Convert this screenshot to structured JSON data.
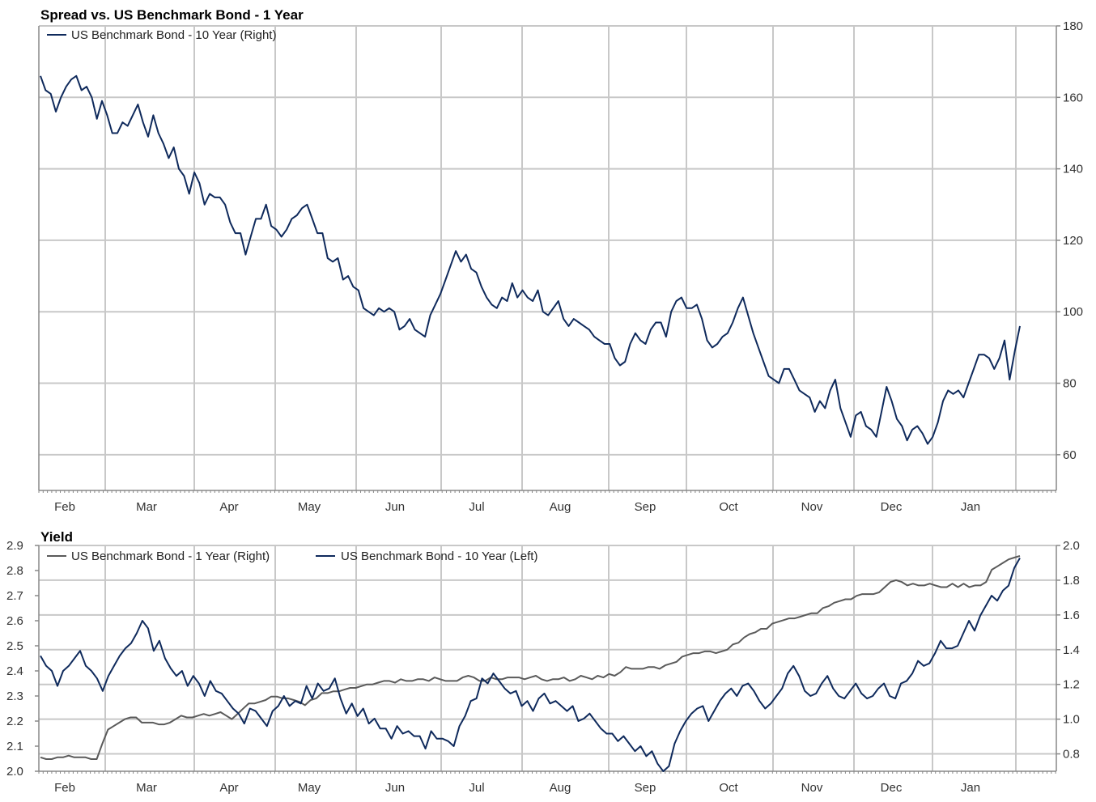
{
  "chart_data": [
    {
      "type": "line",
      "title": "Spread vs. US Benchmark Bond - 1 Year",
      "x_labels": [
        "Feb",
        "Mar",
        "Apr",
        "May",
        "Jun",
        "Jul",
        "Aug",
        "Sep",
        "Oct",
        "Nov",
        "Dec",
        "Jan"
      ],
      "y_right": {
        "min": 50,
        "max": 180,
        "ticks": [
          60,
          80,
          100,
          120,
          140,
          160,
          180
        ]
      },
      "grid": true,
      "series": [
        {
          "name": "US Benchmark Bond - 10 Year (Right)",
          "axis": "right",
          "color": "#0f2a5c",
          "values": [
            166,
            162,
            161,
            156,
            160,
            163,
            165,
            166,
            162,
            163,
            160,
            154,
            159,
            155,
            150,
            150,
            153,
            152,
            155,
            158,
            153,
            149,
            155,
            150,
            147,
            143,
            146,
            140,
            138,
            133,
            139,
            136,
            130,
            133,
            132,
            132,
            130,
            125,
            122,
            122,
            116,
            121,
            126,
            126,
            130,
            124,
            123,
            121,
            123,
            126,
            127,
            129,
            130,
            126,
            122,
            122,
            115,
            114,
            115,
            109,
            110,
            107,
            106,
            101,
            100,
            99,
            101,
            100,
            101,
            100,
            95,
            96,
            98,
            95,
            94,
            93,
            99,
            102,
            105,
            109,
            113,
            117,
            114,
            116,
            112,
            111,
            107,
            104,
            102,
            101,
            104,
            103,
            108,
            104,
            106,
            104,
            103,
            106,
            100,
            99,
            101,
            103,
            98,
            96,
            98,
            97,
            96,
            95,
            93,
            92,
            91,
            91,
            87,
            85,
            86,
            91,
            94,
            92,
            91,
            95,
            97,
            97,
            93,
            100,
            103,
            104,
            101,
            101,
            102,
            98,
            92,
            90,
            91,
            93,
            94,
            97,
            101,
            104,
            99,
            94,
            90,
            86,
            82,
            81,
            80,
            84,
            84,
            81,
            78,
            77,
            76,
            72,
            75,
            73,
            78,
            81,
            73,
            69,
            65,
            71,
            72,
            68,
            67,
            65,
            72,
            79,
            75,
            70,
            68,
            64,
            67,
            68,
            66,
            63,
            65,
            69,
            75,
            78,
            77,
            78,
            76,
            80,
            84,
            88,
            88,
            87,
            84,
            87,
            92,
            81,
            89,
            96
          ]
        }
      ]
    },
    {
      "type": "line",
      "title": "Yield",
      "x_labels": [
        "Feb",
        "Mar",
        "Apr",
        "May",
        "Jun",
        "Jul",
        "Aug",
        "Sep",
        "Oct",
        "Nov",
        "Dec",
        "Jan"
      ],
      "y_left": {
        "min": 2.0,
        "max": 2.9,
        "ticks": [
          2.0,
          2.1,
          2.2,
          2.3,
          2.4,
          2.5,
          2.6,
          2.7,
          2.8,
          2.9
        ]
      },
      "y_right": {
        "min": 0.7,
        "max": 2.0,
        "ticks": [
          0.8,
          1.0,
          1.2,
          1.4,
          1.6,
          1.8,
          2.0
        ]
      },
      "grid": true,
      "series": [
        {
          "name": "US Benchmark Bond - 1 Year (Right)",
          "axis": "right",
          "color": "#5a5a5a",
          "values": [
            0.78,
            0.77,
            0.77,
            0.78,
            0.78,
            0.79,
            0.78,
            0.78,
            0.78,
            0.77,
            0.77,
            0.86,
            0.94,
            0.96,
            0.98,
            1.0,
            1.01,
            1.01,
            0.98,
            0.98,
            0.98,
            0.97,
            0.97,
            0.98,
            1.0,
            1.02,
            1.01,
            1.01,
            1.02,
            1.03,
            1.02,
            1.03,
            1.04,
            1.02,
            1.0,
            1.03,
            1.06,
            1.09,
            1.09,
            1.1,
            1.11,
            1.13,
            1.13,
            1.12,
            1.12,
            1.11,
            1.1,
            1.08,
            1.11,
            1.12,
            1.15,
            1.15,
            1.16,
            1.16,
            1.17,
            1.18,
            1.18,
            1.19,
            1.2,
            1.2,
            1.21,
            1.22,
            1.22,
            1.21,
            1.23,
            1.22,
            1.22,
            1.23,
            1.23,
            1.22,
            1.24,
            1.23,
            1.22,
            1.22,
            1.22,
            1.24,
            1.25,
            1.24,
            1.22,
            1.22,
            1.24,
            1.23,
            1.23,
            1.24,
            1.24,
            1.24,
            1.23,
            1.24,
            1.25,
            1.23,
            1.22,
            1.23,
            1.23,
            1.24,
            1.22,
            1.23,
            1.25,
            1.24,
            1.23,
            1.25,
            1.24,
            1.26,
            1.25,
            1.27,
            1.3,
            1.29,
            1.29,
            1.29,
            1.3,
            1.3,
            1.29,
            1.31,
            1.32,
            1.33,
            1.36,
            1.37,
            1.38,
            1.38,
            1.39,
            1.39,
            1.38,
            1.39,
            1.4,
            1.43,
            1.44,
            1.47,
            1.49,
            1.5,
            1.52,
            1.52,
            1.55,
            1.56,
            1.57,
            1.58,
            1.58,
            1.59,
            1.6,
            1.61,
            1.61,
            1.64,
            1.65,
            1.67,
            1.68,
            1.69,
            1.69,
            1.71,
            1.72,
            1.72,
            1.72,
            1.73,
            1.76,
            1.79,
            1.8,
            1.79,
            1.77,
            1.78,
            1.77,
            1.77,
            1.78,
            1.77,
            1.76,
            1.76,
            1.78,
            1.76,
            1.78,
            1.76,
            1.77,
            1.77,
            1.79,
            1.86,
            1.88,
            1.9,
            1.92,
            1.93,
            1.94
          ]
        },
        {
          "name": "US Benchmark Bond - 10 Year (Left)",
          "axis": "left",
          "color": "#0f2a5c",
          "values": [
            2.46,
            2.42,
            2.4,
            2.34,
            2.4,
            2.42,
            2.45,
            2.48,
            2.42,
            2.4,
            2.37,
            2.32,
            2.38,
            2.42,
            2.46,
            2.49,
            2.51,
            2.55,
            2.6,
            2.57,
            2.48,
            2.52,
            2.45,
            2.41,
            2.38,
            2.4,
            2.34,
            2.38,
            2.35,
            2.3,
            2.36,
            2.32,
            2.31,
            2.28,
            2.25,
            2.23,
            2.19,
            2.25,
            2.24,
            2.21,
            2.18,
            2.24,
            2.26,
            2.3,
            2.26,
            2.28,
            2.27,
            2.34,
            2.29,
            2.35,
            2.32,
            2.33,
            2.37,
            2.29,
            2.23,
            2.27,
            2.22,
            2.25,
            2.19,
            2.21,
            2.17,
            2.17,
            2.13,
            2.18,
            2.15,
            2.16,
            2.14,
            2.14,
            2.09,
            2.16,
            2.13,
            2.13,
            2.12,
            2.1,
            2.18,
            2.22,
            2.28,
            2.29,
            2.37,
            2.35,
            2.39,
            2.36,
            2.33,
            2.31,
            2.32,
            2.26,
            2.28,
            2.24,
            2.29,
            2.31,
            2.27,
            2.28,
            2.26,
            2.24,
            2.26,
            2.2,
            2.21,
            2.23,
            2.2,
            2.17,
            2.15,
            2.15,
            2.12,
            2.14,
            2.11,
            2.08,
            2.1,
            2.06,
            2.08,
            2.03,
            2.0,
            2.02,
            2.11,
            2.16,
            2.2,
            2.23,
            2.25,
            2.26,
            2.2,
            2.24,
            2.28,
            2.31,
            2.33,
            2.3,
            2.34,
            2.35,
            2.32,
            2.28,
            2.25,
            2.27,
            2.3,
            2.33,
            2.39,
            2.42,
            2.38,
            2.32,
            2.3,
            2.31,
            2.35,
            2.38,
            2.33,
            2.3,
            2.29,
            2.32,
            2.35,
            2.31,
            2.29,
            2.3,
            2.33,
            2.35,
            2.3,
            2.29,
            2.35,
            2.36,
            2.39,
            2.44,
            2.42,
            2.43,
            2.47,
            2.52,
            2.49,
            2.49,
            2.5,
            2.55,
            2.6,
            2.56,
            2.62,
            2.66,
            2.7,
            2.68,
            2.72,
            2.74,
            2.81,
            2.85
          ]
        }
      ]
    }
  ]
}
